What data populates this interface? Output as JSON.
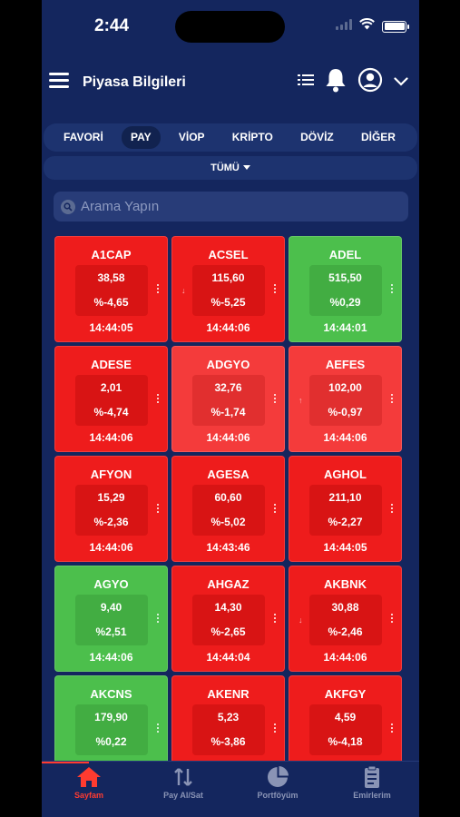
{
  "status_bar": {
    "time": "2:44"
  },
  "header": {
    "title": "Piyasa Bilgileri"
  },
  "tabs": [
    {
      "label": "FAVORİ",
      "active": false
    },
    {
      "label": "PAY",
      "active": true
    },
    {
      "label": "VİOP",
      "active": false
    },
    {
      "label": "KRİPTO",
      "active": false
    },
    {
      "label": "DÖVİZ",
      "active": false
    },
    {
      "label": "DİĞER",
      "active": false
    }
  ],
  "filter": {
    "label": "TÜMÜ"
  },
  "search": {
    "placeholder": "Arama Yapın"
  },
  "colors": {
    "down": "#ee1c1c",
    "up": "#4cbf4c",
    "light_down": "#f43b3b",
    "background": "#14265e",
    "accent": "#ff3b30"
  },
  "stocks": [
    {
      "symbol": "A1CAP",
      "price": "38,58",
      "change": "%-4,65",
      "time": "14:44:05",
      "trend": "down",
      "indicator": ""
    },
    {
      "symbol": "ACSEL",
      "price": "115,60",
      "change": "%-5,25",
      "time": "14:44:06",
      "trend": "down",
      "indicator": "down"
    },
    {
      "symbol": "ADEL",
      "price": "515,50",
      "change": "%0,29",
      "time": "14:44:01",
      "trend": "up",
      "indicator": ""
    },
    {
      "symbol": "ADESE",
      "price": "2,01",
      "change": "%-4,74",
      "time": "14:44:06",
      "trend": "down",
      "indicator": ""
    },
    {
      "symbol": "ADGYO",
      "price": "32,76",
      "change": "%-1,74",
      "time": "14:44:06",
      "trend": "light",
      "indicator": ""
    },
    {
      "symbol": "AEFES",
      "price": "102,00",
      "change": "%-0,97",
      "time": "14:44:06",
      "trend": "light",
      "indicator": "up"
    },
    {
      "symbol": "AFYON",
      "price": "15,29",
      "change": "%-2,36",
      "time": "14:44:06",
      "trend": "down",
      "indicator": ""
    },
    {
      "symbol": "AGESA",
      "price": "60,60",
      "change": "%-5,02",
      "time": "14:43:46",
      "trend": "down",
      "indicator": ""
    },
    {
      "symbol": "AGHOL",
      "price": "211,10",
      "change": "%-2,27",
      "time": "14:44:05",
      "trend": "down",
      "indicator": ""
    },
    {
      "symbol": "AGYO",
      "price": "9,40",
      "change": "%2,51",
      "time": "14:44:06",
      "trend": "up",
      "indicator": ""
    },
    {
      "symbol": "AHGAZ",
      "price": "14,30",
      "change": "%-2,65",
      "time": "14:44:04",
      "trend": "down",
      "indicator": ""
    },
    {
      "symbol": "AKBNK",
      "price": "30,88",
      "change": "%-2,46",
      "time": "14:44:06",
      "trend": "down",
      "indicator": "down"
    },
    {
      "symbol": "AKCNS",
      "price": "179,90",
      "change": "%0,22",
      "time": "",
      "trend": "up",
      "indicator": ""
    },
    {
      "symbol": "AKENR",
      "price": "5,23",
      "change": "%-3,86",
      "time": "",
      "trend": "down",
      "indicator": ""
    },
    {
      "symbol": "AKFGY",
      "price": "4,59",
      "change": "%-4,18",
      "time": "",
      "trend": "down",
      "indicator": ""
    }
  ],
  "bottom_nav": [
    {
      "label": "Sayfam",
      "icon": "home-icon",
      "active": true
    },
    {
      "label": "Pay Al/Sat",
      "icon": "transfer-icon",
      "active": false
    },
    {
      "label": "Portföyüm",
      "icon": "pie-chart-icon",
      "active": false
    },
    {
      "label": "Emirlerim",
      "icon": "clipboard-icon",
      "active": false
    }
  ]
}
